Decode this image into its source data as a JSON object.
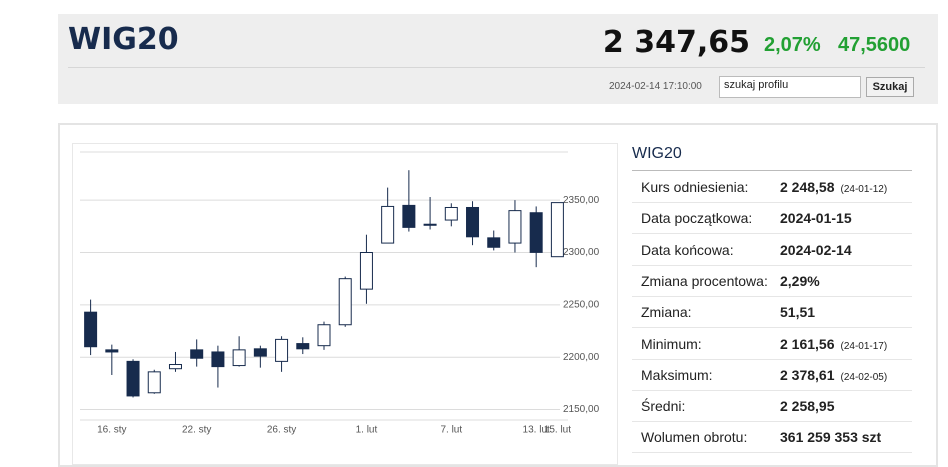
{
  "header": {
    "title": "WIG20",
    "price": "2 347,65",
    "change_pct": "2,07%",
    "change": "47,5600",
    "timestamp": "2024-02-14 17:10:00",
    "search_placeholder": "szukaj profilu",
    "search_button": "Szukaj"
  },
  "chart_data": {
    "type": "candlestick",
    "categories": [
      null,
      "16. sty",
      null,
      null,
      null,
      "22. sty",
      null,
      null,
      null,
      "26. sty",
      null,
      null,
      null,
      "1. lut",
      null,
      null,
      null,
      "7. lut",
      null,
      null,
      null,
      "13. lut",
      "15. lut"
    ],
    "open": [
      2243,
      2207,
      2196,
      2166,
      2189,
      2207,
      2205,
      2192,
      2208,
      2196,
      2213,
      2211,
      2231,
      2265,
      2309,
      2345,
      2327,
      2331,
      2343,
      2314,
      2309,
      2338,
      2296
    ],
    "high": [
      2255,
      2212,
      2198,
      2188,
      2205,
      2217,
      2211,
      2220,
      2211,
      2220,
      2219,
      2234,
      2277,
      2317,
      2362,
      2378.61,
      2353,
      2347,
      2349,
      2321,
      2350,
      2344,
      2347.65
    ],
    "low": [
      2202,
      2183,
      2161.56,
      2165,
      2186,
      2191,
      2171,
      2191,
      2190,
      2186,
      2203,
      2207,
      2229,
      2251,
      2309,
      2320,
      2322,
      2325,
      2307,
      2302,
      2300,
      2286,
      2296
    ],
    "close": [
      2210,
      2205,
      2163,
      2186,
      2193,
      2199,
      2191,
      2207,
      2201,
      2217,
      2208,
      2231,
      2275,
      2300,
      2344,
      2324,
      2326,
      2343,
      2315,
      2305,
      2340,
      2300.09,
      2347.65
    ],
    "up_color": "#ffffff",
    "down_color": "#172b4d",
    "ylim": [
      2140,
      2396
    ],
    "yticks": [
      {
        "value": 2150,
        "label": "2150,00"
      },
      {
        "value": 2200,
        "label": "2200,00"
      },
      {
        "value": 2250,
        "label": "2250,00"
      },
      {
        "value": 2300,
        "label": "2300,00"
      },
      {
        "value": 2350,
        "label": "2350,00"
      }
    ],
    "grid": true
  },
  "stats": {
    "title": "WIG20",
    "rows": [
      {
        "label": "Kurs odniesienia:",
        "value": "2 248,58",
        "note": "(24-01-12)"
      },
      {
        "label": "Data początkowa:",
        "value": "2024-01-15"
      },
      {
        "label": "Data końcowa:",
        "value": "2024-02-14"
      },
      {
        "label": "Zmiana procentowa:",
        "value": "2,29%"
      },
      {
        "label": "Zmiana:",
        "value": "51,51"
      },
      {
        "label": "Minimum:",
        "value": "2 161,56",
        "note": "(24-01-17)"
      },
      {
        "label": "Maksimum:",
        "value": "2 378,61",
        "note": "(24-02-05)"
      },
      {
        "label": "Średni:",
        "value": "2 258,95"
      },
      {
        "label": "Wolumen obrotu:",
        "value": "361 259 353 szt"
      }
    ]
  }
}
